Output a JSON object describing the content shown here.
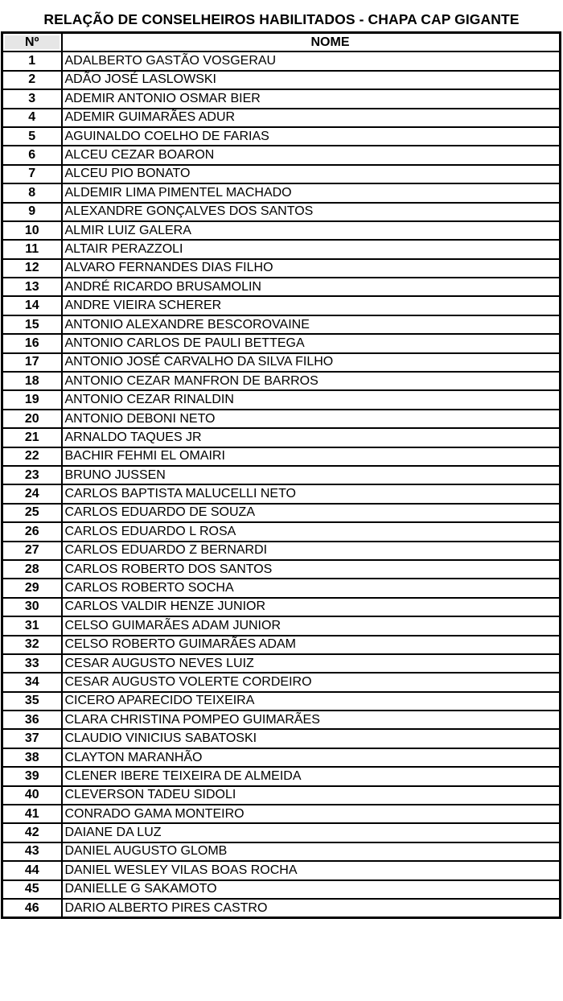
{
  "title": "RELAÇÃO DE CONSELHEIROS HABILITADOS - CHAPA CAP GIGANTE",
  "columns": {
    "number": "Nº",
    "name": "NOME"
  },
  "rows": [
    {
      "n": "1",
      "name": "ADALBERTO GASTÃO VOSGERAU"
    },
    {
      "n": "2",
      "name": "ADÃO JOSÉ LASLOWSKI"
    },
    {
      "n": "3",
      "name": "ADEMIR ANTONIO OSMAR BIER"
    },
    {
      "n": "4",
      "name": "ADEMIR GUIMARÃES ADUR"
    },
    {
      "n": "5",
      "name": "AGUINALDO COELHO DE FARIAS"
    },
    {
      "n": "6",
      "name": "ALCEU CEZAR BOARON"
    },
    {
      "n": "7",
      "name": "ALCEU PIO BONATO"
    },
    {
      "n": "8",
      "name": "ALDEMIR LIMA PIMENTEL MACHADO"
    },
    {
      "n": "9",
      "name": "ALEXANDRE GONÇALVES DOS SANTOS"
    },
    {
      "n": "10",
      "name": "ALMIR LUIZ GALERA"
    },
    {
      "n": "11",
      "name": "ALTAIR PERAZZOLI"
    },
    {
      "n": "12",
      "name": "ALVARO FERNANDES DIAS FILHO"
    },
    {
      "n": "13",
      "name": "ANDRÉ RICARDO BRUSAMOLIN"
    },
    {
      "n": "14",
      "name": "ANDRE VIEIRA SCHERER"
    },
    {
      "n": "15",
      "name": "ANTONIO ALEXANDRE BESCOROVAINE"
    },
    {
      "n": "16",
      "name": "ANTONIO CARLOS DE PAULI BETTEGA"
    },
    {
      "n": "17",
      "name": "ANTONIO JOSÉ CARVALHO DA SILVA FILHO"
    },
    {
      "n": "18",
      "name": "ANTONIO CEZAR MANFRON DE BARROS"
    },
    {
      "n": "19",
      "name": "ANTONIO CEZAR RINALDIN"
    },
    {
      "n": "20",
      "name": "ANTONIO DEBONI NETO"
    },
    {
      "n": "21",
      "name": "ARNALDO TAQUES JR"
    },
    {
      "n": "22",
      "name": "BACHIR FEHMI EL OMAIRI"
    },
    {
      "n": "23",
      "name": "BRUNO JUSSEN"
    },
    {
      "n": "24",
      "name": "CARLOS BAPTISTA MALUCELLI NETO"
    },
    {
      "n": "25",
      "name": "CARLOS EDUARDO DE SOUZA"
    },
    {
      "n": "26",
      "name": "CARLOS EDUARDO L ROSA"
    },
    {
      "n": "27",
      "name": "CARLOS EDUARDO Z BERNARDI"
    },
    {
      "n": "28",
      "name": "CARLOS ROBERTO DOS SANTOS"
    },
    {
      "n": "29",
      "name": "CARLOS ROBERTO SOCHA"
    },
    {
      "n": "30",
      "name": "CARLOS VALDIR HENZE JUNIOR"
    },
    {
      "n": "31",
      "name": "CELSO GUIMARÃES ADAM JUNIOR"
    },
    {
      "n": "32",
      "name": "CELSO ROBERTO GUIMARÃES ADAM"
    },
    {
      "n": "33",
      "name": "CESAR AUGUSTO NEVES LUIZ"
    },
    {
      "n": "34",
      "name": "CESAR AUGUSTO VOLERTE CORDEIRO"
    },
    {
      "n": "35",
      "name": "CICERO APARECIDO TEIXEIRA"
    },
    {
      "n": "36",
      "name": "CLARA CHRISTINA POMPEO GUIMARÃES"
    },
    {
      "n": "37",
      "name": "CLAUDIO VINICIUS SABATOSKI"
    },
    {
      "n": "38",
      "name": "CLAYTON MARANHÃO"
    },
    {
      "n": "39",
      "name": "CLENER IBERE TEIXEIRA DE ALMEIDA"
    },
    {
      "n": "40",
      "name": "CLEVERSON TADEU SIDOLI"
    },
    {
      "n": "41",
      "name": "CONRADO GAMA MONTEIRO"
    },
    {
      "n": "42",
      "name": "DAIANE DA LUZ"
    },
    {
      "n": "43",
      "name": "DANIEL AUGUSTO GLOMB"
    },
    {
      "n": "44",
      "name": "DANIEL WESLEY VILAS BOAS ROCHA"
    },
    {
      "n": "45",
      "name": "DANIELLE G SAKAMOTO"
    },
    {
      "n": "46",
      "name": "DARIO ALBERTO PIRES CASTRO"
    }
  ]
}
